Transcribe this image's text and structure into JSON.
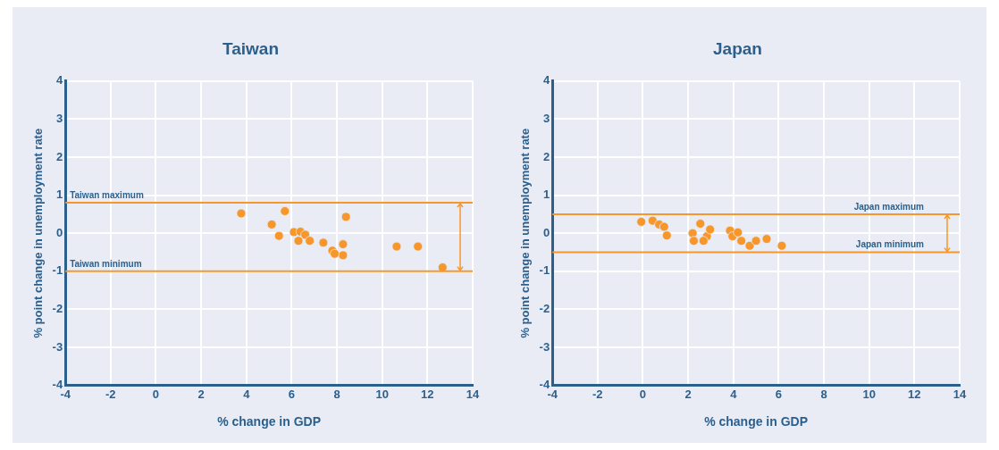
{
  "chart_data": [
    {
      "type": "scatter",
      "title": "Taiwan",
      "xlabel": "% change in GDP",
      "ylabel": "% point change in unemployment rate",
      "color": "#f7962a",
      "marker": "circle",
      "grid": true,
      "x": [
        3.77,
        5.7,
        5.12,
        5.44,
        8.4,
        6.1,
        6.39,
        6.3,
        6.6,
        6.8,
        7.4,
        7.8,
        8.27,
        8.27,
        7.9,
        10.64,
        11.58,
        12.67
      ],
      "values": [
        0.52,
        0.58,
        0.23,
        -0.07,
        0.43,
        0.03,
        0.04,
        -0.2,
        -0.04,
        -0.2,
        -0.25,
        -0.46,
        -0.29,
        -0.58,
        -0.54,
        -0.35,
        -0.35,
        -0.9
      ],
      "xlim": [
        -4,
        14
      ],
      "xticks": [
        -4,
        -2,
        0,
        2,
        4,
        6,
        8,
        10,
        12,
        14
      ],
      "ylim": [
        -4,
        4
      ],
      "yticks": [
        -4,
        -3,
        -2,
        -1,
        0,
        1,
        2,
        3,
        4
      ],
      "ref_lines": [
        {
          "axis": "y",
          "value": 0.8,
          "label": "Taiwan maximum",
          "color": "#f7962a"
        },
        {
          "axis": "y",
          "value": -1,
          "label": "Taiwan minimum",
          "color": "#f7962a"
        }
      ]
    },
    {
      "type": "scatter",
      "title": "Japan",
      "xlabel": "% change in GDP",
      "ylabel": "% point change in unemployment rate",
      "color": "#f7962a",
      "marker": "circle",
      "grid": true,
      "x": [
        -0.07,
        0.43,
        0.72,
        0.94,
        1.06,
        2.2,
        2.25,
        2.54,
        2.83,
        2.97,
        2.68,
        3.85,
        3.96,
        4.2,
        4.35,
        4.72,
        5.0,
        5.47,
        6.14
      ],
      "values": [
        0.3,
        0.33,
        0.23,
        0.17,
        -0.06,
        0,
        -0.2,
        0.25,
        -0.08,
        0.1,
        -0.2,
        0.07,
        -0.08,
        0.02,
        -0.2,
        -0.33,
        -0.2,
        -0.15,
        -0.33
      ],
      "xlim": [
        -4,
        14
      ],
      "xticks": [
        -4,
        -2,
        0,
        2,
        4,
        6,
        8,
        10,
        12,
        14
      ],
      "ylim": [
        -4,
        4
      ],
      "yticks": [
        -4,
        -3,
        -2,
        -1,
        0,
        1,
        2,
        3,
        4
      ],
      "ref_lines": [
        {
          "axis": "y",
          "value": 0.5,
          "label": "Japan maximum",
          "color": "#f7962a"
        },
        {
          "axis": "y",
          "value": -0.5,
          "label": "Japan minimum",
          "color": "#f7962a"
        }
      ]
    }
  ]
}
